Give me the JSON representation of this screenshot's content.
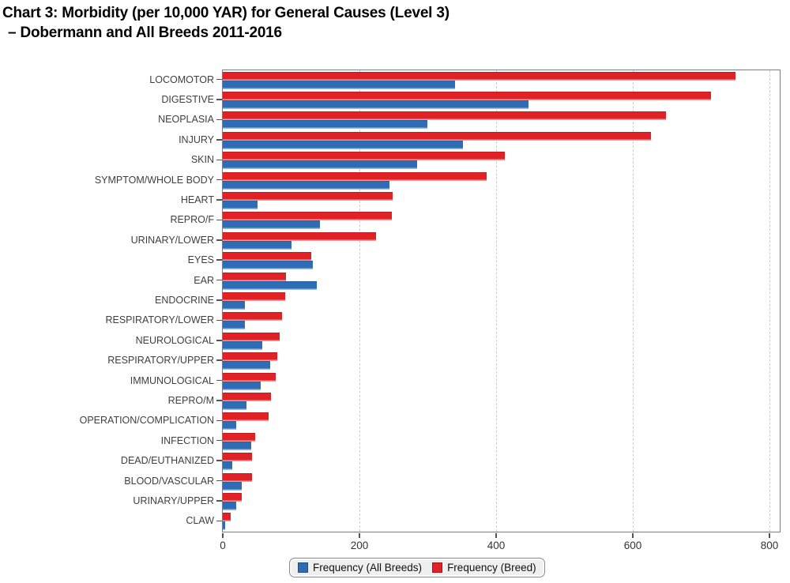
{
  "title": {
    "line1": "Chart 3: Morbidity (per 10,000 YAR) for General Causes (Level 3)",
    "line2": "–  Dobermann and All Breeds 2011-2016"
  },
  "colors": {
    "all_breeds_blue": "#2E6DB5",
    "breed_red": "#E02126",
    "grid": "#CBCBCB",
    "plot_border": "#7D7D7D",
    "category_text": "#3F3F3F",
    "tick_text": "#333333",
    "legend_bg": "#EFEFEF",
    "legend_border": "#8C8C8C"
  },
  "chart_data": {
    "type": "bar",
    "orientation": "horizontal",
    "title": "Chart 3: Morbidity (per 10,000 YAR) for General Causes (Level 3) – Dobermann and All Breeds 2011-2016",
    "xlabel": "",
    "ylabel": "",
    "xlim": [
      0,
      815
    ],
    "x_ticks": [
      0,
      200,
      400,
      600,
      800
    ],
    "grid": "dashed-vertical",
    "legend_position": "bottom-center",
    "bar_order_within_group_top_to_bottom": [
      "Frequency (Breed)",
      "Frequency (All Breeds)"
    ],
    "categories": [
      "LOCOMOTOR",
      "DIGESTIVE",
      "NEOPLASIA",
      "INJURY",
      "SKIN",
      "SYMPTOM/WHOLE BODY",
      "HEART",
      "REPRO/F",
      "URINARY/LOWER",
      "EYES",
      "EAR",
      "ENDOCRINE",
      "RESPIRATORY/LOWER",
      "NEUROLOGICAL",
      "RESPIRATORY/UPPER",
      "IMMUNOLOGICAL",
      "REPRO/M",
      "OPERATION/COMPLICATION",
      "INFECTION",
      "DEAD/EUTHANIZED",
      "BLOOD/VASCULAR",
      "URINARY/UPPER",
      "CLAW"
    ],
    "series": [
      {
        "name": "Frequency (All Breeds)",
        "color": "#2E6DB5",
        "values": [
          340,
          447,
          299,
          352,
          284,
          244,
          51,
          142,
          101,
          132,
          138,
          32,
          32,
          58,
          69,
          55,
          35,
          20,
          42,
          14,
          28,
          20,
          3
        ]
      },
      {
        "name": "Frequency (Breed)",
        "color": "#E02126",
        "values": [
          750,
          714,
          648,
          627,
          413,
          386,
          248,
          247,
          224,
          130,
          93,
          91,
          87,
          83,
          80,
          78,
          71,
          67,
          47,
          43,
          43,
          28,
          12
        ]
      }
    ]
  },
  "x_axis": {
    "tick_labels": [
      "0",
      "200",
      "400",
      "600",
      "800"
    ]
  },
  "legend": {
    "items": [
      {
        "label": "Frequency (All Breeds)",
        "color": "#2E6DB5"
      },
      {
        "label": "Frequency (Breed)",
        "color": "#E02126"
      }
    ]
  }
}
